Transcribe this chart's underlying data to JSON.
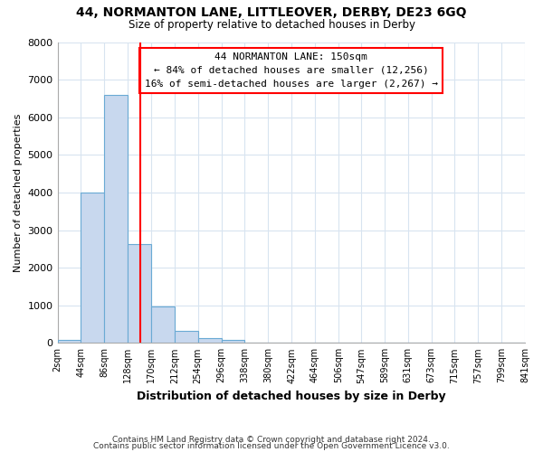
{
  "title": "44, NORMANTON LANE, LITTLEOVER, DERBY, DE23 6GQ",
  "subtitle": "Size of property relative to detached houses in Derby",
  "xlabel": "Distribution of detached houses by size in Derby",
  "ylabel": "Number of detached properties",
  "footer_line1": "Contains HM Land Registry data © Crown copyright and database right 2024.",
  "footer_line2": "Contains public sector information licensed under the Open Government Licence v3.0.",
  "annotation_line1": "44 NORMANTON LANE: 150sqm",
  "annotation_line2": "← 84% of detached houses are smaller (12,256)",
  "annotation_line3": "16% of semi-detached houses are larger (2,267) →",
  "bin_edges": [
    2,
    44,
    86,
    128,
    170,
    212,
    254,
    296,
    338,
    380,
    422,
    464,
    506,
    547,
    589,
    631,
    673,
    715,
    757,
    799,
    841
  ],
  "bin_heights": [
    75,
    4000,
    6600,
    2620,
    960,
    320,
    120,
    75,
    0,
    0,
    0,
    0,
    0,
    0,
    0,
    0,
    0,
    0,
    0,
    0
  ],
  "bar_facecolor": "#c8d8ee",
  "bar_edgecolor": "#6aaad4",
  "property_line_x": 150,
  "property_line_color": "red",
  "ylim": [
    0,
    8000
  ],
  "xlim": [
    2,
    841
  ],
  "background_color": "#ffffff",
  "grid_color": "#d8e4f0",
  "annotation_box_edgecolor": "red",
  "annotation_box_facecolor": "#ffffff"
}
